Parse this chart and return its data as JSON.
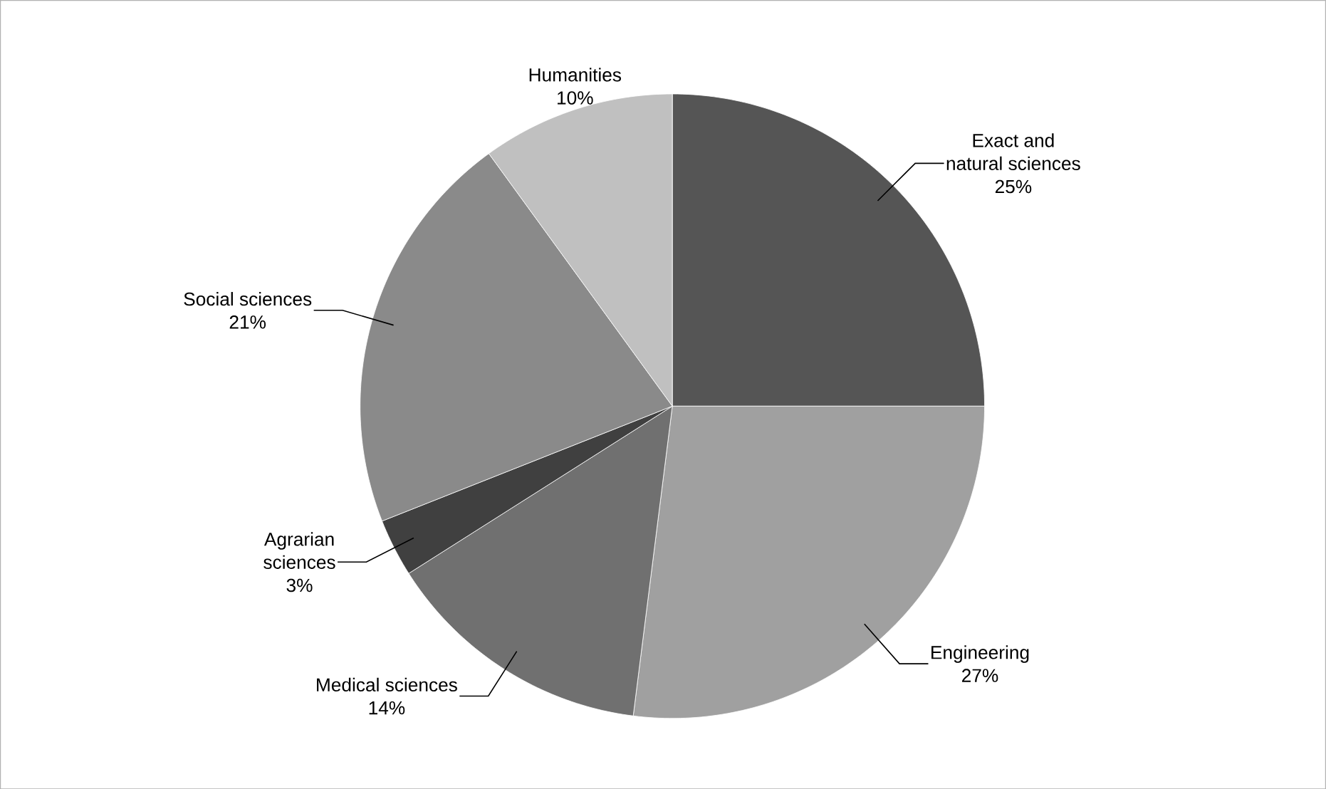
{
  "chart_data": {
    "type": "pie",
    "categories": [
      "Exact and natural sciences",
      "Engineering",
      "Medical sciences",
      "Agrarian sciences",
      "Social sciences",
      "Humanities"
    ],
    "values": [
      25,
      27,
      14,
      3,
      21,
      10
    ],
    "value_labels": [
      "25%",
      "27%",
      "14%",
      "3%",
      "21%",
      "10%"
    ],
    "colors": [
      "#555555",
      "#a0a0a0",
      "#707070",
      "#404040",
      "#8a8a8a",
      "#c0c0c0"
    ]
  }
}
